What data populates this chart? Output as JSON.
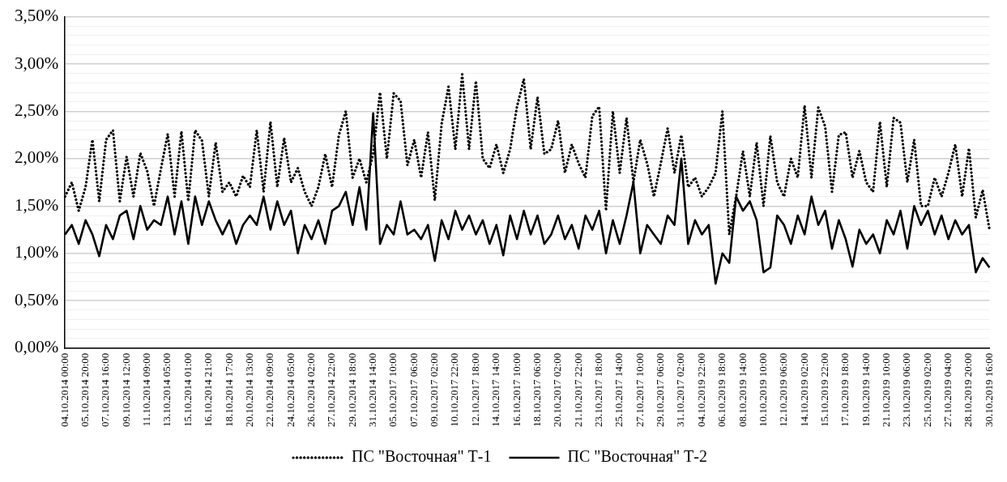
{
  "chart_data": {
    "type": "line",
    "categories": [
      "04.10.2014 00:00",
      null,
      null,
      "05.10.2014 20:00",
      null,
      null,
      "07.10.2014 16:00",
      null,
      null,
      "09.10.2014 12:00",
      null,
      null,
      "11.10.2014 09:00",
      null,
      null,
      "13.10.2014 05:00",
      null,
      null,
      "15.10.2014 01:00",
      null,
      null,
      "16.10.2014 21:00",
      null,
      null,
      "18.10.2014 17:00",
      null,
      null,
      "20.10.2014 13:00",
      null,
      null,
      "22.10.2014 09:00",
      null,
      null,
      "24.10.2014 05:00",
      null,
      null,
      "26.10.2014 02:00",
      null,
      null,
      "27.10.2014 22:00",
      null,
      null,
      "29.10.2014 18:00",
      null,
      null,
      "31.10.2014 14:00",
      null,
      null,
      "05.10.2017 10:00",
      null,
      null,
      "07.10.2017 06:00",
      null,
      null,
      "09.10.2017 02:00",
      null,
      null,
      "10.10.2017 22:00",
      null,
      null,
      "12.10.2017 18:00",
      null,
      null,
      "14.10.2017 14:00",
      null,
      null,
      "16.10.2017 10:00",
      null,
      null,
      "18.10.2017 06:00",
      null,
      null,
      "20.10.2017 02:00",
      null,
      null,
      "21.10.2017 22:00",
      null,
      null,
      "23.10.2017 18:00",
      null,
      null,
      "25.10.2017 14:00",
      null,
      null,
      "27.10.2017 10:00",
      null,
      null,
      "29.10.2017 06:00",
      null,
      null,
      "31.10.2017 02:00",
      null,
      null,
      "04.10.2019 22:00",
      null,
      null,
      "06.10.2019 18:00",
      null,
      null,
      "08.10.2019 14:00",
      null,
      null,
      "10.10.2019 10:00",
      null,
      null,
      "12.10.2019 06:00",
      null,
      null,
      "14.10.2019 02:00",
      null,
      null,
      "15.10.2019 22:00",
      null,
      null,
      "17.10.2019 18:00",
      null,
      null,
      "19.10.2019 14:00",
      null,
      null,
      "21.10.2019 10:00",
      null,
      null,
      "23.10.2019 06:00",
      null,
      null,
      "25.10.2019 02:00",
      null,
      null,
      "27.10.2019 04:00",
      null,
      null,
      "28.10.2019 20:00",
      null,
      null,
      "30.10.2019 16:00"
    ],
    "series": [
      {
        "name": "ПС \"Восточная\" Т-1",
        "color": "#000000",
        "line_style": "dotted",
        "values": [
          1.6,
          1.75,
          1.45,
          1.7,
          2.2,
          1.55,
          2.2,
          2.3,
          1.55,
          2.02,
          1.6,
          2.06,
          1.87,
          1.5,
          1.89,
          2.26,
          1.6,
          2.29,
          1.55,
          2.3,
          2.19,
          1.6,
          2.17,
          1.65,
          1.75,
          1.6,
          1.82,
          1.7,
          2.3,
          1.65,
          2.39,
          1.7,
          2.22,
          1.75,
          1.9,
          1.65,
          1.5,
          1.7,
          2.05,
          1.7,
          2.25,
          2.5,
          1.8,
          2.0,
          1.75,
          2.05,
          2.7,
          2.0,
          2.69,
          2.61,
          1.93,
          2.2,
          1.8,
          2.28,
          1.56,
          2.37,
          2.76,
          2.1,
          2.89,
          2.1,
          2.82,
          2.0,
          1.9,
          2.15,
          1.85,
          2.1,
          2.55,
          2.84,
          2.1,
          2.65,
          2.05,
          2.1,
          2.4,
          1.85,
          2.15,
          1.95,
          1.8,
          2.45,
          2.55,
          1.45,
          2.5,
          1.85,
          2.43,
          1.75,
          2.2,
          1.95,
          1.6,
          1.95,
          2.32,
          1.85,
          2.25,
          1.7,
          1.8,
          1.6,
          1.7,
          1.85,
          2.5,
          1.2,
          1.6,
          2.08,
          1.6,
          2.17,
          1.5,
          2.24,
          1.75,
          1.6,
          2.0,
          1.8,
          2.56,
          1.8,
          2.54,
          2.34,
          1.65,
          2.25,
          2.28,
          1.8,
          2.08,
          1.75,
          1.65,
          2.39,
          1.7,
          2.43,
          2.38,
          1.75,
          2.2,
          1.5,
          1.5,
          1.8,
          1.6,
          1.85,
          2.15,
          1.6,
          2.11,
          1.38,
          1.67,
          1.25
        ]
      },
      {
        "name": "ПС \"Восточная\" Т-2",
        "color": "#000000",
        "line_style": "solid",
        "values": [
          1.2,
          1.3,
          1.1,
          1.35,
          1.2,
          0.97,
          1.3,
          1.15,
          1.4,
          1.45,
          1.15,
          1.5,
          1.25,
          1.35,
          1.3,
          1.6,
          1.2,
          1.55,
          1.1,
          1.6,
          1.3,
          1.55,
          1.35,
          1.2,
          1.35,
          1.1,
          1.3,
          1.4,
          1.3,
          1.6,
          1.25,
          1.55,
          1.3,
          1.45,
          1.0,
          1.3,
          1.15,
          1.35,
          1.1,
          1.45,
          1.5,
          1.65,
          1.3,
          1.7,
          1.25,
          2.48,
          1.1,
          1.3,
          1.2,
          1.55,
          1.2,
          1.25,
          1.15,
          1.3,
          0.92,
          1.35,
          1.15,
          1.45,
          1.25,
          1.4,
          1.2,
          1.35,
          1.1,
          1.3,
          0.98,
          1.4,
          1.15,
          1.45,
          1.2,
          1.4,
          1.1,
          1.2,
          1.4,
          1.15,
          1.3,
          1.05,
          1.4,
          1.25,
          1.45,
          1.0,
          1.35,
          1.1,
          1.4,
          1.75,
          1.0,
          1.3,
          1.2,
          1.1,
          1.4,
          1.3,
          2.0,
          1.1,
          1.35,
          1.2,
          1.3,
          0.68,
          1.0,
          0.9,
          1.6,
          1.45,
          1.55,
          1.35,
          0.8,
          0.85,
          1.4,
          1.3,
          1.1,
          1.4,
          1.2,
          1.6,
          1.3,
          1.45,
          1.05,
          1.35,
          1.15,
          0.86,
          1.25,
          1.1,
          1.2,
          1.0,
          1.35,
          1.2,
          1.45,
          1.05,
          1.5,
          1.3,
          1.45,
          1.2,
          1.4,
          1.15,
          1.35,
          1.2,
          1.3,
          0.8,
          0.95,
          0.85
        ]
      }
    ],
    "ylim": [
      0,
      3.5
    ],
    "yticks": [
      {
        "value": 0,
        "label": "0,00%"
      },
      {
        "value": 0.1,
        "label": null
      },
      {
        "value": 0.2,
        "label": null
      },
      {
        "value": 0.3,
        "label": null
      },
      {
        "value": 0.4,
        "label": null
      },
      {
        "value": 0.5,
        "label": "0,50%"
      },
      {
        "value": 0.6,
        "label": null
      },
      {
        "value": 0.7,
        "label": null
      },
      {
        "value": 0.8,
        "label": null
      },
      {
        "value": 0.9,
        "label": null
      },
      {
        "value": 1,
        "label": "1,00%"
      },
      {
        "value": 1.1,
        "label": null
      },
      {
        "value": 1.2,
        "label": null
      },
      {
        "value": 1.3,
        "label": null
      },
      {
        "value": 1.4,
        "label": null
      },
      {
        "value": 1.5,
        "label": "1,50%"
      },
      {
        "value": 1.6,
        "label": null
      },
      {
        "value": 1.7,
        "label": null
      },
      {
        "value": 1.8,
        "label": null
      },
      {
        "value": 1.9,
        "label": null
      },
      {
        "value": 2,
        "label": "2,00%"
      },
      {
        "value": 2.1,
        "label": null
      },
      {
        "value": 2.2,
        "label": null
      },
      {
        "value": 2.3,
        "label": null
      },
      {
        "value": 2.4,
        "label": null
      },
      {
        "value": 2.5,
        "label": "2,50%"
      },
      {
        "value": 2.6,
        "label": null
      },
      {
        "value": 2.7,
        "label": null
      },
      {
        "value": 2.8,
        "label": null
      },
      {
        "value": 2.9,
        "label": null
      },
      {
        "value": 3,
        "label": "3,00%"
      },
      {
        "value": 3.1,
        "label": null
      },
      {
        "value": 3.2,
        "label": null
      },
      {
        "value": 3.3,
        "label": null
      },
      {
        "value": 3.4,
        "label": null
      },
      {
        "value": 3.5,
        "label": "3,50%"
      }
    ],
    "grid": "y",
    "legend": "bottom",
    "marker": "none"
  }
}
